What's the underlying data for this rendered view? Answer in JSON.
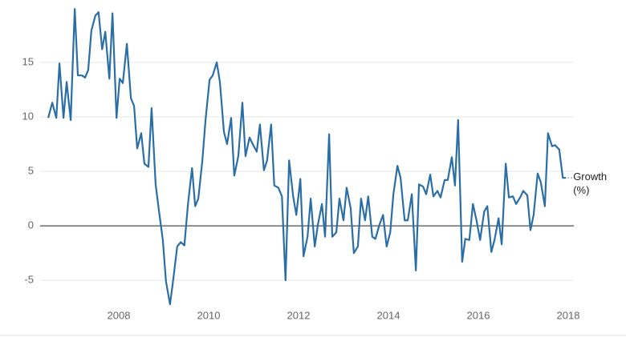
{
  "chart_data": {
    "type": "line",
    "annotation": "Growth (%)",
    "xlim": [
      2006.25,
      2018.125
    ],
    "ylim": [
      -8,
      20.5
    ],
    "xticks": [
      2008,
      2010,
      2012,
      2014,
      2016,
      2018
    ],
    "yticks": [
      -5,
      0,
      5,
      10,
      15
    ],
    "grid": true,
    "x": [
      2006.43,
      2006.52,
      2006.61,
      2006.68,
      2006.77,
      2006.84,
      2006.93,
      2007.02,
      2007.09,
      2007.18,
      2007.25,
      2007.32,
      2007.39,
      2007.48,
      2007.55,
      2007.63,
      2007.7,
      2007.79,
      2007.86,
      2007.95,
      2008.02,
      2008.09,
      2008.18,
      2008.27,
      2008.34,
      2008.41,
      2008.5,
      2008.57,
      2008.66,
      2008.73,
      2008.82,
      2008.89,
      2008.98,
      2009.05,
      2009.14,
      2009.21,
      2009.3,
      2009.38,
      2009.46,
      2009.54,
      2009.63,
      2009.7,
      2009.77,
      2009.86,
      2009.93,
      2010.02,
      2010.09,
      2010.18,
      2010.25,
      2010.34,
      2010.41,
      2010.5,
      2010.57,
      2010.66,
      2010.75,
      2010.82,
      2010.91,
      2010.98,
      2011.07,
      2011.14,
      2011.23,
      2011.3,
      2011.39,
      2011.46,
      2011.55,
      2011.63,
      2011.71,
      2011.79,
      2011.88,
      2011.95,
      2012.04,
      2012.11,
      2012.2,
      2012.27,
      2012.36,
      2012.43,
      2012.52,
      2012.59,
      2012.68,
      2012.75,
      2012.84,
      2012.91,
      2013.0,
      2013.07,
      2013.16,
      2013.23,
      2013.32,
      2013.39,
      2013.48,
      2013.55,
      2013.64,
      2013.71,
      2013.8,
      2013.88,
      2013.96,
      2014.04,
      2014.11,
      2014.2,
      2014.27,
      2014.36,
      2014.43,
      2014.52,
      2014.61,
      2014.68,
      2014.77,
      2014.84,
      2014.93,
      2015.0,
      2015.09,
      2015.16,
      2015.25,
      2015.32,
      2015.41,
      2015.48,
      2015.55,
      2015.64,
      2015.71,
      2015.8,
      2015.88,
      2015.96,
      2016.04,
      2016.13,
      2016.2,
      2016.29,
      2016.36,
      2016.45,
      2016.52,
      2016.61,
      2016.68,
      2016.77,
      2016.84,
      2016.93,
      2017.0,
      2017.09,
      2017.16,
      2017.23,
      2017.32,
      2017.39,
      2017.48,
      2017.55,
      2017.64,
      2017.71,
      2017.8,
      2017.88,
      2017.95
    ],
    "series": [
      {
        "color": "#2b6ea6",
        "values": [
          9.9,
          11.3,
          9.9,
          14.9,
          9.9,
          13.2,
          9.7,
          19.9,
          13.8,
          13.8,
          13.6,
          14.3,
          17.9,
          19.3,
          19.6,
          16.2,
          17.8,
          13.5,
          19.5,
          9.9,
          13.5,
          13.1,
          16.7,
          11.7,
          11.0,
          7.1,
          8.5,
          5.7,
          5.4,
          10.8,
          3.8,
          1.5,
          -1.3,
          -5.1,
          -7.2,
          -5.0,
          -1.9,
          -1.5,
          -1.8,
          2.0,
          5.3,
          1.8,
          2.5,
          6.0,
          9.7,
          13.4,
          13.8,
          15.0,
          13.2,
          8.6,
          7.5,
          9.9,
          4.6,
          6.4,
          11.3,
          6.4,
          8.1,
          7.5,
          6.8,
          9.3,
          5.1,
          6.0,
          9.3,
          3.7,
          3.5,
          2.7,
          -5.0,
          6.0,
          2.7,
          1.0,
          4.3,
          -2.8,
          -1.0,
          2.5,
          -1.9,
          0.1,
          2.0,
          -1.0,
          8.4,
          -1.0,
          -0.6,
          2.5,
          0.5,
          3.5,
          1.6,
          -2.5,
          -1.9,
          2.5,
          0.5,
          2.7,
          -1.0,
          -1.2,
          0.1,
          1.0,
          -1.9,
          -0.6,
          2.9,
          5.5,
          4.4,
          0.5,
          0.5,
          2.9,
          -4.1,
          3.8,
          3.6,
          2.9,
          4.7,
          2.7,
          3.2,
          2.6,
          4.2,
          4.2,
          6.3,
          3.7,
          9.7,
          -3.3,
          -1.2,
          -1.3,
          2.0,
          0.5,
          -1.3,
          1.3,
          1.8,
          -2.4,
          -1.3,
          0.7,
          -1.7,
          5.7,
          2.6,
          2.7,
          2.0,
          2.6,
          3.2,
          2.8,
          -0.4,
          1.0,
          4.8,
          4.0,
          1.8,
          8.5,
          7.3,
          7.4,
          7.0,
          4.4,
          4.4
        ]
      }
    ]
  }
}
